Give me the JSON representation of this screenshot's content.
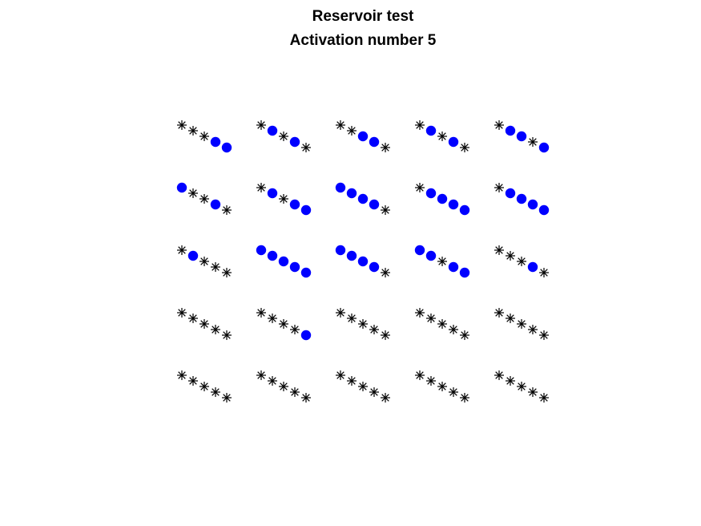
{
  "chart_data": {
    "type": "scatter",
    "title": "Reservoir test",
    "subtitle": "Activation number 5",
    "xlabel": "",
    "ylabel": "",
    "axes_visible": false,
    "grid": false,
    "legend": "none",
    "colors": {
      "active": "#0000ff",
      "inactive": "#000000"
    },
    "marker_legend": {
      "active": "filled-circle",
      "inactive": "asterisk"
    },
    "rows": 5,
    "cols": 5,
    "points_per_cell": 5,
    "grid_states": [
      [
        [
          0,
          0,
          0,
          1,
          1
        ],
        [
          0,
          1,
          0,
          1,
          0
        ],
        [
          0,
          0,
          1,
          1,
          0
        ],
        [
          0,
          1,
          0,
          1,
          0
        ],
        [
          0,
          1,
          1,
          0,
          1
        ]
      ],
      [
        [
          1,
          0,
          0,
          1,
          0
        ],
        [
          0,
          1,
          0,
          1,
          1
        ],
        [
          1,
          1,
          1,
          1,
          0
        ],
        [
          0,
          1,
          1,
          1,
          1
        ],
        [
          0,
          1,
          1,
          1,
          1
        ]
      ],
      [
        [
          0,
          1,
          0,
          0,
          0
        ],
        [
          1,
          1,
          1,
          1,
          1
        ],
        [
          1,
          1,
          1,
          1,
          0
        ],
        [
          1,
          1,
          0,
          1,
          1
        ],
        [
          0,
          0,
          0,
          1,
          0
        ]
      ],
      [
        [
          0,
          0,
          0,
          0,
          0
        ],
        [
          0,
          0,
          0,
          0,
          1
        ],
        [
          0,
          0,
          0,
          0,
          0
        ],
        [
          0,
          0,
          0,
          0,
          0
        ],
        [
          0,
          0,
          0,
          0,
          0
        ]
      ],
      [
        [
          0,
          0,
          0,
          0,
          0
        ],
        [
          0,
          0,
          0,
          0,
          0
        ],
        [
          0,
          0,
          0,
          0,
          0
        ],
        [
          0,
          0,
          0,
          0,
          0
        ],
        [
          0,
          0,
          0,
          0,
          0
        ]
      ]
    ]
  }
}
